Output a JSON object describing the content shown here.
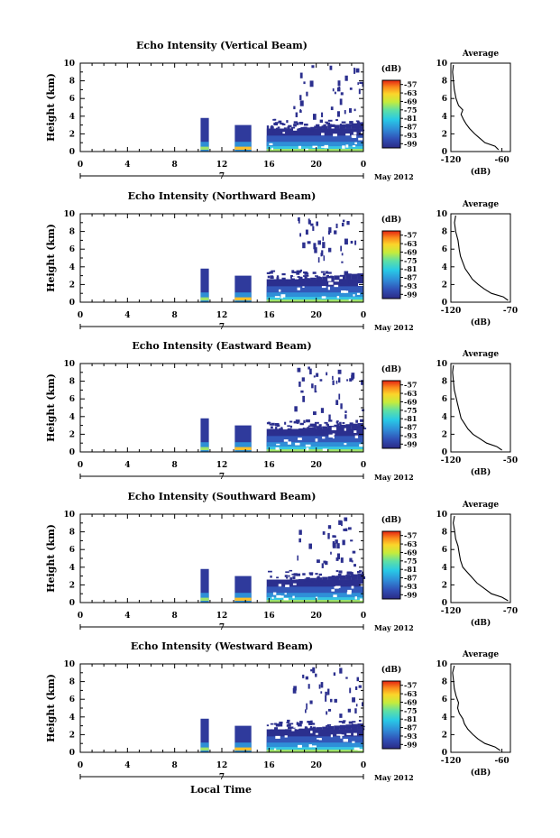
{
  "figure": {
    "xlabel_bottom": "Local Time"
  },
  "chart_data": [
    {
      "type": "heatmap",
      "title": "Echo Intensity (Vertical Beam)",
      "ylabel": "Height (km)",
      "ylim": [
        0,
        10
      ],
      "yticks": [
        "0",
        "2",
        "4",
        "6",
        "8",
        "10"
      ],
      "xlim": [
        0,
        24
      ],
      "xticks": [
        "0",
        "4",
        "8",
        "12",
        "16",
        "20",
        "0"
      ],
      "date_day": "7",
      "date_label": "May 2012",
      "colorbar": {
        "unit": "(dB)",
        "ticks": [
          "-57",
          "-63",
          "-69",
          "-75",
          "-81",
          "-87",
          "-93",
          "-99"
        ]
      },
      "average": {
        "title": "Average",
        "xlabel": "(dB)",
        "xticks": [
          "-120",
          "-60"
        ],
        "xlim": [
          -120,
          -50
        ],
        "ylim": [
          0,
          10
        ],
        "yticks": [
          "0",
          "2",
          "4",
          "6",
          "8",
          "10"
        ]
      },
      "profile": [
        [
          -64,
          0.2
        ],
        [
          -68,
          0.6
        ],
        [
          -80,
          1.0
        ],
        [
          -86,
          1.5
        ],
        [
          -92,
          2.0
        ],
        [
          -98,
          2.6
        ],
        [
          -102,
          3.1
        ],
        [
          -105,
          3.6
        ],
        [
          -108,
          4.2
        ],
        [
          -106,
          4.7
        ],
        [
          -111,
          5.2
        ],
        [
          -114,
          6.0
        ],
        [
          -116,
          7.0
        ],
        [
          -117,
          8.0
        ],
        [
          -118,
          9.0
        ],
        [
          -117,
          9.8
        ]
      ]
    },
    {
      "type": "heatmap",
      "title": "Echo Intensity (Northward Beam)",
      "ylabel": "Height (km)",
      "ylim": [
        0,
        10
      ],
      "yticks": [
        "0",
        "2",
        "4",
        "6",
        "8",
        "10"
      ],
      "xlim": [
        0,
        24
      ],
      "xticks": [
        "0",
        "4",
        "8",
        "12",
        "16",
        "20",
        "0"
      ],
      "date_day": "7",
      "date_label": "May 2012",
      "colorbar": {
        "unit": "(dB)",
        "ticks": [
          "-57",
          "-63",
          "-69",
          "-75",
          "-81",
          "-87",
          "-93",
          "-99"
        ]
      },
      "average": {
        "title": "Average",
        "xlabel": "(dB)",
        "xticks": [
          "-120",
          "-70"
        ],
        "xlim": [
          -120,
          -70
        ],
        "ylim": [
          0,
          10
        ],
        "yticks": [
          "0",
          "2",
          "4",
          "6",
          "8",
          "10"
        ]
      },
      "profile": [
        [
          -72,
          0.2
        ],
        [
          -76,
          0.6
        ],
        [
          -86,
          1.0
        ],
        [
          -92,
          1.5
        ],
        [
          -97,
          2.0
        ],
        [
          -102,
          2.6
        ],
        [
          -105,
          3.2
        ],
        [
          -108,
          3.8
        ],
        [
          -110,
          4.5
        ],
        [
          -112,
          5.2
        ],
        [
          -113,
          6.0
        ],
        [
          -114,
          7.0
        ],
        [
          -116,
          8.0
        ],
        [
          -117,
          9.0
        ],
        [
          -116,
          9.8
        ]
      ]
    },
    {
      "type": "heatmap",
      "title": "Echo Intensity (Eastward Beam)",
      "ylabel": "Height (km)",
      "ylim": [
        0,
        10
      ],
      "yticks": [
        "0",
        "2",
        "4",
        "6",
        "8",
        "10"
      ],
      "xlim": [
        0,
        24
      ],
      "xticks": [
        "0",
        "4",
        "8",
        "12",
        "16",
        "20",
        "0"
      ],
      "date_day": "7",
      "date_label": "May 2012",
      "colorbar": {
        "unit": "(dB)",
        "ticks": [
          "-57",
          "-63",
          "-69",
          "-75",
          "-81",
          "-87",
          "-93",
          "-99"
        ]
      },
      "average": {
        "title": "Average",
        "xlabel": "(dB)",
        "xticks": [
          "-120",
          "-50"
        ],
        "xlim": [
          -120,
          -50
        ],
        "ylim": [
          0,
          10
        ],
        "yticks": [
          "0",
          "2",
          "4",
          "6",
          "8",
          "10"
        ]
      },
      "profile": [
        [
          -60,
          0.2
        ],
        [
          -66,
          0.6
        ],
        [
          -78,
          1.0
        ],
        [
          -86,
          1.5
        ],
        [
          -94,
          2.0
        ],
        [
          -100,
          2.6
        ],
        [
          -104,
          3.2
        ],
        [
          -108,
          3.8
        ],
        [
          -110,
          4.6
        ],
        [
          -112,
          5.4
        ],
        [
          -114,
          6.2
        ],
        [
          -116,
          7.0
        ],
        [
          -117,
          8.0
        ],
        [
          -118,
          9.0
        ],
        [
          -117,
          9.8
        ]
      ]
    },
    {
      "type": "heatmap",
      "title": "Echo Intensity (Southward Beam)",
      "ylabel": "Height (km)",
      "ylim": [
        0,
        10
      ],
      "yticks": [
        "0",
        "2",
        "4",
        "6",
        "8",
        "10"
      ],
      "xlim": [
        0,
        24
      ],
      "xticks": [
        "0",
        "4",
        "8",
        "12",
        "16",
        "20",
        "0"
      ],
      "date_day": "7",
      "date_label": "May 2012",
      "colorbar": {
        "unit": "(dB)",
        "ticks": [
          "-57",
          "-63",
          "-69",
          "-75",
          "-81",
          "-87",
          "-93",
          "-99"
        ]
      },
      "average": {
        "title": "Average",
        "xlabel": "(dB)",
        "xticks": [
          "-120",
          "-70"
        ],
        "xlim": [
          -120,
          -70
        ],
        "ylim": [
          0,
          10
        ],
        "yticks": [
          "0",
          "2",
          "4",
          "6",
          "8",
          "10"
        ]
      },
      "profile": [
        [
          -72,
          0.2
        ],
        [
          -77,
          0.6
        ],
        [
          -86,
          1.0
        ],
        [
          -92,
          1.6
        ],
        [
          -98,
          2.2
        ],
        [
          -102,
          2.8
        ],
        [
          -106,
          3.4
        ],
        [
          -110,
          4.0
        ],
        [
          -112,
          4.8
        ],
        [
          -113,
          5.6
        ],
        [
          -114,
          6.4
        ],
        [
          -116,
          7.2
        ],
        [
          -117,
          8.2
        ],
        [
          -118,
          9.0
        ],
        [
          -117,
          9.8
        ]
      ]
    },
    {
      "type": "heatmap",
      "title": "Echo Intensity (Westward Beam)",
      "ylabel": "Height (km)",
      "ylim": [
        0,
        10
      ],
      "yticks": [
        "0",
        "2",
        "4",
        "6",
        "8",
        "10"
      ],
      "xlim": [
        0,
        24
      ],
      "xticks": [
        "0",
        "4",
        "8",
        "12",
        "16",
        "20",
        "0"
      ],
      "date_day": "7",
      "date_label": "May 2012",
      "colorbar": {
        "unit": "(dB)",
        "ticks": [
          "-57",
          "-63",
          "-69",
          "-75",
          "-81",
          "-87",
          "-93",
          "-99"
        ]
      },
      "average": {
        "title": "Average",
        "xlabel": "(dB)",
        "xticks": [
          "-120",
          "-60"
        ],
        "xlim": [
          -120,
          -50
        ],
        "ylim": [
          0,
          10
        ],
        "yticks": [
          "0",
          "2",
          "4",
          "6",
          "8",
          "10"
        ]
      },
      "profile": [
        [
          -62,
          0.2
        ],
        [
          -68,
          0.6
        ],
        [
          -80,
          1.0
        ],
        [
          -88,
          1.5
        ],
        [
          -94,
          2.0
        ],
        [
          -100,
          2.6
        ],
        [
          -104,
          3.2
        ],
        [
          -106,
          3.8
        ],
        [
          -110,
          4.4
        ],
        [
          -112,
          5.0
        ],
        [
          -111,
          5.6
        ],
        [
          -114,
          6.4
        ],
        [
          -116,
          7.2
        ],
        [
          -117,
          8.2
        ],
        [
          -118,
          9.0
        ],
        [
          -116,
          9.8
        ]
      ]
    }
  ]
}
